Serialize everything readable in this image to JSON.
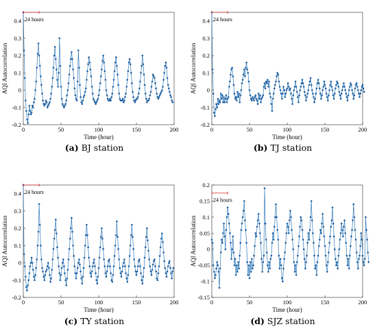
{
  "figure": {
    "panels": [
      {
        "tag": "(a)",
        "caption": "BJ station"
      },
      {
        "tag": "(b)",
        "caption": "TJ station"
      },
      {
        "tag": "(c)",
        "caption": "TY station"
      },
      {
        "tag": "(d)",
        "caption": "SJZ station"
      }
    ]
  },
  "colors": {
    "series": "#2e78b8",
    "marker": "#1f5f9f",
    "annotation": "#d62728",
    "axis": "#262626"
  },
  "chart_data": [
    {
      "type": "line",
      "xlabel": "Time (hour)",
      "ylabel": "AQI Autocorrelation",
      "xlim": [
        0,
        200
      ],
      "ylim": [
        -0.2,
        0.45
      ],
      "xticks": [
        "0",
        "50",
        "100",
        "150",
        "200"
      ],
      "yticks": [
        "-0.2",
        "-0.1",
        "0",
        "0.1",
        "0.2",
        "0.3",
        "0.4"
      ],
      "annotation": {
        "label": "24 hours",
        "x_start": 0,
        "x_end": 21,
        "y": 0.45
      },
      "grid": false,
      "y": [
        0.45,
        0.23,
        0.07,
        -0.06,
        -0.12,
        -0.17,
        -0.19,
        -0.14,
        -0.09,
        -0.12,
        -0.14,
        -0.13,
        -0.09,
        -0.1,
        -0.07,
        -0.05,
        0.0,
        0.05,
        0.13,
        0.21,
        0.27,
        0.2,
        0.14,
        0.08,
        0.03,
        -0.02,
        -0.06,
        -0.08,
        -0.09,
        -0.08,
        -0.06,
        -0.07,
        -0.1,
        -0.09,
        -0.08,
        -0.07,
        -0.05,
        -0.02,
        0.02,
        0.07,
        0.13,
        0.2,
        0.25,
        0.18,
        0.12,
        0.06,
        0.02,
        0.1,
        0.3,
        0.14,
        0.02,
        -0.05,
        -0.08,
        -0.09,
        -0.1,
        -0.09,
        -0.08,
        -0.06,
        -0.03,
        0.0,
        0.04,
        0.09,
        0.14,
        0.18,
        0.22,
        0.18,
        0.12,
        0.07,
        0.01,
        -0.03,
        -0.05,
        -0.06,
        0.05,
        0.23,
        0.13,
        0.03,
        -0.04,
        -0.07,
        -0.08,
        -0.06,
        -0.04,
        -0.03,
        -0.01,
        0.01,
        0.06,
        0.11,
        0.15,
        0.19,
        0.16,
        0.12,
        0.08,
        0.02,
        -0.02,
        -0.05,
        -0.06,
        -0.07,
        -0.08,
        -0.07,
        -0.06,
        -0.05,
        -0.03,
        0.0,
        0.04,
        0.08,
        0.12,
        0.17,
        0.2,
        0.16,
        0.11,
        0.06,
        0.0,
        -0.03,
        -0.05,
        -0.06,
        -0.06,
        -0.05,
        -0.06,
        -0.04,
        -0.02,
        0.02,
        0.06,
        0.11,
        0.16,
        0.19,
        0.14,
        0.09,
        0.03,
        -0.02,
        -0.05,
        -0.06,
        -0.06,
        -0.06,
        -0.05,
        -0.07,
        -0.06,
        -0.04,
        -0.02,
        0.02,
        0.06,
        0.11,
        0.16,
        0.18,
        0.15,
        0.1,
        0.04,
        -0.01,
        -0.04,
        -0.06,
        -0.07,
        -0.06,
        -0.05,
        -0.05,
        -0.04,
        -0.02,
        0.01,
        0.05,
        0.1,
        0.14,
        0.2,
        0.15,
        0.09,
        0.03,
        -0.02,
        -0.05,
        -0.07,
        -0.06,
        -0.06,
        -0.05,
        -0.03,
        -0.01,
        0.02,
        0.05,
        0.09,
        0.08,
        0.07,
        0.04,
        0.01,
        -0.02,
        -0.04,
        -0.05,
        -0.04,
        -0.03,
        -0.02,
        -0.01,
        0.0,
        0.02,
        0.06,
        0.1,
        0.14,
        0.16,
        0.13,
        0.07,
        0.03,
        0.01,
        -0.01,
        -0.03,
        -0.04,
        -0.06,
        -0.07
      ]
    },
    {
      "type": "line",
      "xlabel": "Time (hour)",
      "ylabel": "AQI Autocorrelation",
      "xlim": [
        0,
        200
      ],
      "ylim": [
        -0.2,
        0.45
      ],
      "xticks": [
        "0",
        "50",
        "100",
        "150",
        "200"
      ],
      "yticks": [
        "-0.2",
        "-0.1",
        "0",
        "0.1",
        "0.2",
        "0.3",
        "0.4"
      ],
      "annotation": {
        "label": "24 hours",
        "x_start": 0,
        "x_end": 21,
        "y": 0.45
      },
      "grid": false,
      "y": [
        0.45,
        0.12,
        -0.02,
        -0.13,
        -0.15,
        -0.11,
        -0.08,
        -0.1,
        -0.05,
        -0.08,
        -0.06,
        -0.07,
        -0.02,
        -0.05,
        -0.03,
        -0.07,
        -0.04,
        -0.07,
        -0.05,
        -0.03,
        -0.07,
        -0.05,
        -0.04,
        0.02,
        0.05,
        0.09,
        0.12,
        0.13,
        0.08,
        0.03,
        -0.02,
        -0.05,
        -0.04,
        -0.06,
        -0.01,
        -0.04,
        -0.02,
        -0.07,
        -0.03,
        0.0,
        0.04,
        0.06,
        0.09,
        0.12,
        0.08,
        0.13,
        0.16,
        0.12,
        0.1,
        0.05,
        0.0,
        -0.03,
        -0.05,
        -0.06,
        -0.04,
        -0.05,
        -0.06,
        -0.04,
        -0.03,
        -0.05,
        -0.06,
        -0.08,
        -0.02,
        -0.05,
        -0.03,
        -0.07,
        -0.05,
        -0.04,
        -0.03,
        0.02,
        0.04,
        0.01,
        0.05,
        0.04,
        0.06,
        0.02,
        0.05,
        -0.02,
        -0.04,
        -0.08,
        -0.12,
        -0.05,
        -0.02,
        0.01,
        0.03,
        0.05,
        0.08,
        0.1,
        0.09,
        0.05,
        0.02,
        0.0,
        -0.02,
        -0.05,
        -0.02,
        0.02,
        0.0,
        -0.04,
        -0.02,
        0.0,
        0.01,
        0.04,
        0.02,
        0.0,
        0.01,
        -0.02,
        -0.05,
        -0.08,
        -0.03,
        0.0,
        0.02,
        0.05,
        0.02,
        -0.01,
        -0.04,
        -0.07,
        -0.03,
        0.0,
        0.02,
        0.04,
        0.06,
        0.04,
        0.02,
        -0.01,
        -0.03,
        -0.06,
        -0.04,
        -0.02,
        0.0,
        0.03,
        0.05,
        0.07,
        0.03,
        0.0,
        -0.02,
        -0.04,
        -0.07,
        -0.05,
        -0.02,
        0.01,
        0.04,
        0.06,
        0.04,
        0.01,
        -0.02,
        -0.05,
        -0.03,
        0.0,
        0.02,
        0.05,
        0.03,
        0.01,
        -0.02,
        -0.04,
        -0.06,
        -0.03,
        0.0,
        0.03,
        0.05,
        0.02,
        0.0,
        -0.03,
        -0.05,
        -0.02,
        0.01,
        0.03,
        0.05,
        0.04,
        0.02,
        -0.01,
        -0.03,
        -0.05,
        -0.02,
        0.0,
        0.02,
        0.04,
        0.02,
        0.0,
        -0.02,
        -0.04,
        -0.06,
        -0.03,
        0.0,
        0.02,
        0.04,
        0.03,
        0.0,
        -0.02,
        -0.05,
        -0.03,
        0.01,
        0.03,
        0.04,
        0.02,
        0.0,
        -0.02,
        -0.04,
        -0.02,
        0.0,
        0.02,
        0.03,
        0.01,
        -0.01
      ]
    },
    {
      "type": "line",
      "xlabel": "Time (hour)",
      "ylabel": "AQI Autocorrelation",
      "xlim": [
        0,
        200
      ],
      "ylim": [
        -0.2,
        0.45
      ],
      "xticks": [
        "0",
        "50",
        "100",
        "150",
        "200"
      ],
      "yticks": [
        "-0.2",
        "-0.1",
        "0",
        "0.1",
        "0.2",
        "0.3",
        "0.4"
      ],
      "annotation": {
        "label": "24 hours",
        "x_start": 0,
        "x_end": 21,
        "y": 0.45
      },
      "grid": false,
      "y": [
        0.45,
        0.05,
        -0.02,
        -0.08,
        -0.14,
        -0.16,
        -0.13,
        -0.1,
        -0.06,
        -0.02,
        0.0,
        0.03,
        0.0,
        -0.04,
        -0.08,
        -0.1,
        -0.07,
        -0.03,
        0.02,
        0.1,
        0.18,
        0.34,
        0.22,
        0.1,
        0.02,
        -0.03,
        -0.05,
        -0.08,
        -0.1,
        -0.07,
        -0.05,
        -0.04,
        -0.02,
        0.0,
        -0.03,
        -0.07,
        -0.11,
        -0.09,
        -0.04,
        0.02,
        0.08,
        0.14,
        0.19,
        0.25,
        0.17,
        0.09,
        0.03,
        -0.02,
        -0.06,
        -0.1,
        -0.07,
        -0.03,
        0.0,
        0.02,
        -0.02,
        -0.06,
        -0.1,
        -0.13,
        -0.09,
        -0.04,
        0.02,
        0.08,
        0.14,
        0.2,
        0.26,
        0.18,
        0.1,
        0.04,
        -0.02,
        -0.06,
        -0.09,
        -0.06,
        -0.03,
        0.0,
        0.02,
        -0.01,
        -0.05,
        -0.09,
        -0.12,
        -0.08,
        -0.03,
        0.03,
        0.1,
        0.16,
        0.22,
        0.16,
        0.09,
        0.03,
        -0.02,
        -0.06,
        -0.08,
        -0.05,
        -0.02,
        0.0,
        0.02,
        -0.02,
        -0.06,
        -0.1,
        -0.12,
        -0.08,
        -0.03,
        0.03,
        0.09,
        0.15,
        0.2,
        0.14,
        0.08,
        0.02,
        -0.02,
        -0.06,
        -0.08,
        -0.05,
        -0.02,
        0.01,
        0.02,
        -0.02,
        -0.06,
        -0.1,
        -0.11,
        -0.07,
        -0.02,
        0.04,
        0.1,
        0.16,
        0.24,
        0.15,
        0.08,
        0.02,
        -0.03,
        -0.06,
        -0.08,
        -0.05,
        -0.02,
        0.0,
        0.02,
        -0.02,
        -0.06,
        -0.09,
        -0.11,
        -0.07,
        -0.02,
        0.04,
        0.1,
        0.16,
        0.22,
        0.15,
        0.08,
        0.02,
        -0.02,
        -0.05,
        -0.07,
        -0.05,
        -0.02,
        0.01,
        0.02,
        -0.02,
        -0.06,
        -0.1,
        -0.12,
        -0.08,
        -0.03,
        0.03,
        0.09,
        0.15,
        0.2,
        0.13,
        0.07,
        0.02,
        -0.02,
        -0.05,
        -0.07,
        -0.04,
        -0.01,
        0.01,
        0.02,
        -0.02,
        -0.05,
        -0.09,
        -0.1,
        -0.06,
        -0.02,
        0.04,
        0.09,
        0.14,
        0.17,
        0.12,
        0.06,
        0.01,
        -0.03,
        -0.06,
        -0.08,
        -0.05,
        -0.02,
        0.0,
        0.01,
        -0.03,
        -0.06,
        -0.09,
        -0.05,
        -0.03
      ]
    },
    {
      "type": "line",
      "xlabel": "Time (hour)",
      "ylabel": "AQI Autocorrelation",
      "xlim": [
        0,
        200
      ],
      "ylim": [
        -0.15,
        0.2
      ],
      "xticks": [
        "0",
        "50",
        "100",
        "150",
        "200"
      ],
      "yticks": [
        "-0.15",
        "-0.1",
        "-0.05",
        "0",
        "0.05",
        "0.1",
        "0.15",
        "0.2"
      ],
      "annotation": {
        "label": "24 hours",
        "x_start": 0,
        "x_end": 21,
        "y": 0.175
      },
      "grid": false,
      "y": [
        0.03,
        0.02,
        -0.05,
        -0.07,
        -0.09,
        -0.08,
        -0.06,
        -0.04,
        -0.05,
        -0.07,
        -0.12,
        -0.06,
        -0.01,
        0.03,
        0.02,
        0.05,
        0.08,
        0.04,
        0.0,
        0.06,
        0.1,
        0.13,
        0.11,
        0.08,
        0.05,
        0.02,
        -0.03,
        0.0,
        0.04,
        -0.01,
        -0.05,
        -0.03,
        -0.08,
        -0.05,
        -0.07,
        -0.04,
        -0.06,
        -0.02,
        0.02,
        0.06,
        0.08,
        0.1,
        0.12,
        0.15,
        0.09,
        0.06,
        0.02,
        -0.04,
        -0.08,
        -0.05,
        -0.09,
        -0.04,
        -0.07,
        -0.03,
        -0.06,
        -0.05,
        -0.02,
        0.01,
        0.05,
        0.04,
        0.07,
        0.09,
        0.11,
        0.08,
        0.05,
        0.02,
        -0.03,
        -0.07,
        -0.04,
        -0.02,
        0.19,
        0.08,
        0.03,
        -0.01,
        -0.05,
        -0.07,
        -0.04,
        -0.06,
        -0.03,
        -0.02,
        0.02,
        0.05,
        0.03,
        0.07,
        0.1,
        0.14,
        0.1,
        0.06,
        0.03,
        -0.02,
        -0.06,
        -0.03,
        -0.05,
        -0.09,
        -0.1,
        -0.06,
        -0.03,
        -0.01,
        0.02,
        0.05,
        0.08,
        0.07,
        0.05,
        0.09,
        0.12,
        0.1,
        0.06,
        0.03,
        0.0,
        -0.04,
        -0.07,
        -0.05,
        -0.08,
        -0.04,
        -0.02,
        0.01,
        0.04,
        0.07,
        0.1,
        0.09,
        0.06,
        0.03,
        0.0,
        -0.03,
        -0.06,
        -0.04,
        -0.02,
        0.02,
        0.05,
        0.03,
        0.06,
        0.1,
        0.15,
        0.09,
        0.05,
        0.02,
        -0.02,
        -0.06,
        -0.05,
        -0.08,
        -0.04,
        -0.02,
        0.01,
        0.03,
        0.06,
        0.05,
        0.08,
        0.11,
        0.07,
        0.04,
        0.01,
        -0.02,
        -0.05,
        -0.07,
        -0.04,
        -0.01,
        0.02,
        0.04,
        0.07,
        0.09,
        0.13,
        0.08,
        0.04,
        0.0,
        -0.03,
        -0.05,
        -0.04,
        -0.06,
        -0.02,
        0.0,
        0.03,
        0.05,
        0.08,
        0.06,
        0.04,
        0.07,
        0.09,
        0.05,
        0.02,
        -0.02,
        -0.05,
        -0.03,
        -0.06,
        -0.02,
        0.01,
        0.04,
        0.06,
        0.09,
        0.14,
        0.1,
        0.06,
        0.03,
        -0.01,
        -0.04,
        -0.06,
        -0.03,
        -0.02,
        0.01,
        0.05,
        0.03,
        -0.02,
        -0.04,
        -0.05,
        -0.03,
        0.1,
        0.06,
        0.03,
        -0.01,
        -0.04
      ]
    }
  ]
}
